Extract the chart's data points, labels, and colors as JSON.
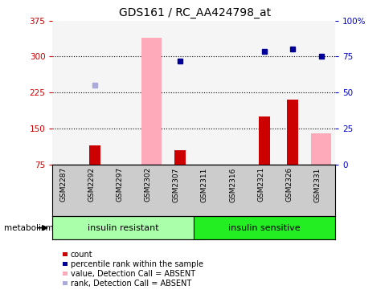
{
  "title": "GDS161 / RC_AA424798_at",
  "samples": [
    "GSM2287",
    "GSM2292",
    "GSM2297",
    "GSM2302",
    "GSM2307",
    "GSM2311",
    "GSM2316",
    "GSM2321",
    "GSM2326",
    "GSM2331"
  ],
  "xlim": [
    -0.5,
    9.5
  ],
  "ylim_left": [
    75,
    375
  ],
  "ylim_right": [
    0,
    100
  ],
  "yticks_left": [
    75,
    150,
    225,
    300,
    375
  ],
  "yticks_right": [
    0,
    25,
    50,
    75,
    100
  ],
  "yticklabels_right": [
    "0",
    "25",
    "50",
    "75",
    "100%"
  ],
  "bar_red_values": [
    null,
    115,
    null,
    null,
    105,
    null,
    null,
    175,
    210,
    null
  ],
  "bar_pink_values": [
    null,
    null,
    null,
    340,
    null,
    null,
    null,
    null,
    null,
    140
  ],
  "dot_blue_values": [
    null,
    null,
    null,
    null,
    290,
    null,
    null,
    310,
    315,
    300
  ],
  "dot_lightblue_values": [
    null,
    240,
    null,
    null,
    null,
    null,
    null,
    null,
    null,
    null
  ],
  "bar_red_color": "#cc0000",
  "bar_pink_color": "#ffaabb",
  "dot_blue_color": "#000099",
  "dot_lightblue_color": "#aaaadd",
  "group_colors": [
    "#aaffaa",
    "#22ee22"
  ],
  "group_labels": [
    "insulin resistant",
    "insulin sensitive"
  ],
  "legend_items": [
    {
      "label": "count",
      "color": "#cc0000"
    },
    {
      "label": "percentile rank within the sample",
      "color": "#000099"
    },
    {
      "label": "value, Detection Call = ABSENT",
      "color": "#ffaabb"
    },
    {
      "label": "rank, Detection Call = ABSENT",
      "color": "#aaaadd"
    }
  ],
  "background_color": "#ffffff",
  "axis_color_left": "#cc0000",
  "axis_color_right": "#0000cc",
  "plot_bg": "#f5f5f5"
}
